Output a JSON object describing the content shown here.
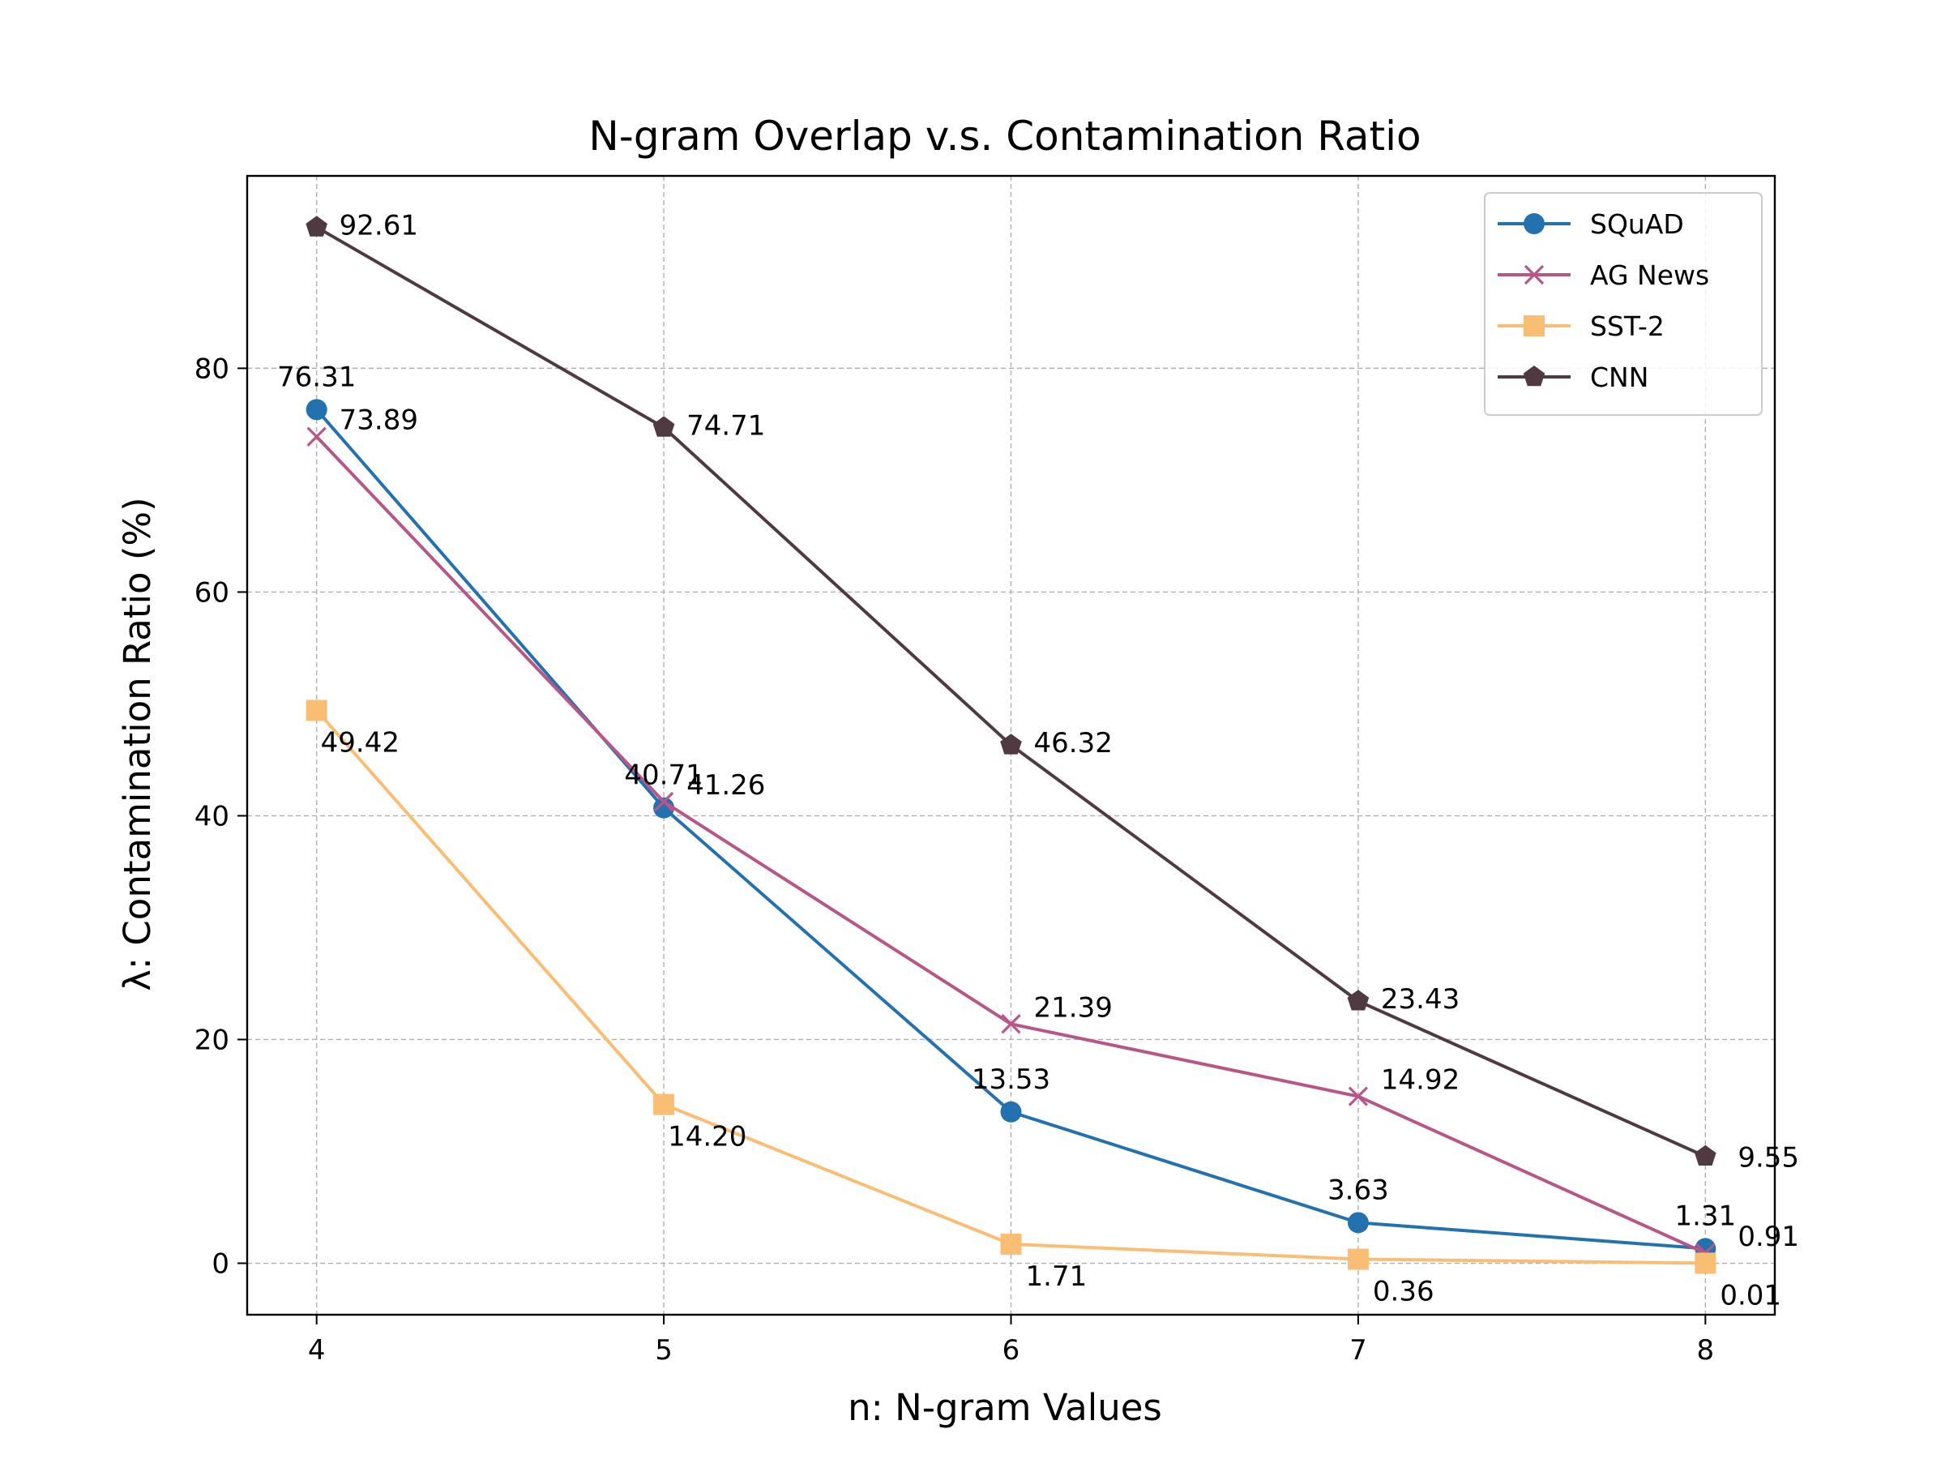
{
  "chart_data": {
    "type": "line",
    "title": "N-gram Overlap v.s. Contamination Ratio",
    "xlabel": "n: N-gram Values",
    "ylabel": "λ: Contamination Ratio (%)",
    "x": [
      4,
      5,
      6,
      7,
      8
    ],
    "x_ticks": [
      "4",
      "5",
      "6",
      "7",
      "8"
    ],
    "y_ticks": [
      "0",
      "20",
      "40",
      "60",
      "80"
    ],
    "xlim": [
      3.8,
      8.2
    ],
    "ylim": [
      -4.6,
      97.2
    ],
    "grid": true,
    "legend_position": "top-right",
    "series": [
      {
        "name": "SQuAD",
        "color": "#2471b0",
        "marker": "circle",
        "values": [
          76.31,
          40.71,
          13.53,
          3.63,
          1.31
        ],
        "labels": [
          "76.31",
          "40.71",
          "13.53",
          "3.63",
          "1.31"
        ]
      },
      {
        "name": "AG News",
        "color": "#b85688",
        "marker": "x",
        "values": [
          73.89,
          41.26,
          21.39,
          14.92,
          0.91
        ],
        "labels": [
          "73.89",
          "41.26",
          "21.39",
          "14.92",
          "0.91"
        ]
      },
      {
        "name": "SST-2",
        "color": "#f9bd74",
        "marker": "square",
        "values": [
          49.42,
          14.2,
          1.71,
          0.36,
          0.01
        ],
        "labels": [
          "49.42",
          "14.20",
          "1.71",
          "0.36",
          "0.01"
        ]
      },
      {
        "name": "CNN",
        "color": "#4f3a41",
        "marker": "pentagon",
        "values": [
          92.61,
          74.71,
          46.32,
          23.43,
          9.55
        ],
        "labels": [
          "92.61",
          "74.71",
          "46.32",
          "23.43",
          "9.55"
        ]
      }
    ]
  }
}
